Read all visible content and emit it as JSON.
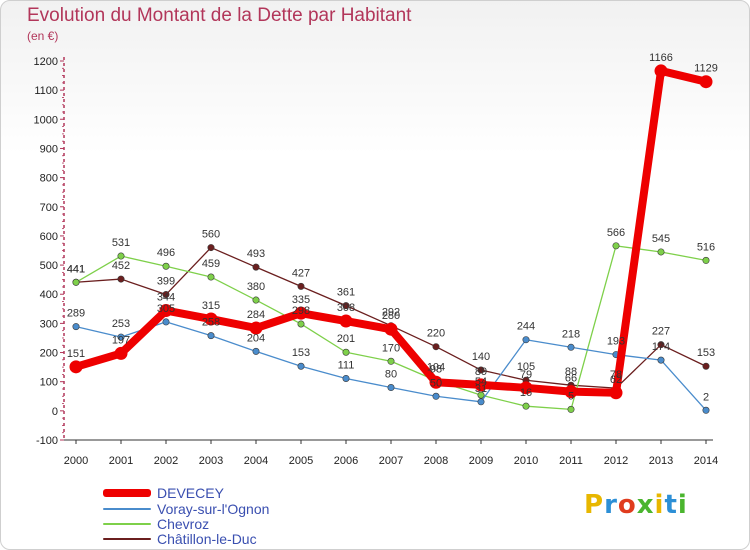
{
  "title": "Evolution du Montant de la Dette par Habitant",
  "unit_label": "(en €)",
  "logo_text": "Proxiti",
  "logo_colors": [
    "#e8b700",
    "#2c8fd6",
    "#e03c1e",
    "#4ab52e",
    "#e8b700",
    "#2c8fd6",
    "#4ab52e"
  ],
  "chart_data": {
    "type": "line",
    "x": [
      "2000",
      "2001",
      "2002",
      "2003",
      "2004",
      "2005",
      "2006",
      "2007",
      "2008",
      "2009",
      "2010",
      "2011",
      "2012",
      "2013",
      "2014"
    ],
    "ylim": [
      -100,
      1200
    ],
    "yticks": [
      -100,
      0,
      100,
      200,
      300,
      400,
      500,
      600,
      700,
      800,
      900,
      1000,
      1100,
      1200
    ],
    "grid": false,
    "legend_position": "bottom-left",
    "series": [
      {
        "name": "Châtillon-le-Duc",
        "color": "#6b1f1f",
        "values": [
          441,
          452,
          399,
          560,
          493,
          427,
          361,
          292,
          220,
          140,
          105,
          88,
          78,
          227,
          153
        ]
      },
      {
        "name": "Chevroz",
        "color": "#7ed04a",
        "values": [
          441,
          531,
          496,
          459,
          380,
          298,
          201,
          170,
          104,
          54,
          16,
          5,
          566,
          545,
          516
        ]
      },
      {
        "name": "Voray-sur-l'Ognon",
        "color": "#4a8ccc",
        "values": [
          289,
          253,
          305,
          258,
          204,
          153,
          111,
          80,
          50,
          31,
          244,
          218,
          193,
          174,
          2
        ]
      },
      {
        "name": "DEVECEY",
        "color": "#ee0000",
        "values": [
          151,
          197,
          344,
          315,
          284,
          335,
          308,
          280,
          98,
          89,
          79,
          66,
          62,
          1166,
          1129
        ]
      }
    ],
    "data_labels": {
      "Châtillon-le-Duc": [
        "441",
        "452",
        "399",
        "560",
        "493",
        "427",
        "361",
        "292",
        "220",
        "140",
        "105",
        "88",
        "78",
        "227",
        "153"
      ],
      "Chevroz": [
        "441",
        "531",
        "496",
        "459",
        "380",
        "298",
        "201",
        "170",
        "104",
        "54",
        "16",
        "5",
        "566",
        "545",
        "516"
      ],
      "Voray-sur-l'Ognon": [
        "289",
        "253",
        "305",
        "258",
        "204",
        "153",
        "111",
        "80",
        "50",
        "31",
        "244",
        "218",
        "193",
        "174",
        "2"
      ],
      "DEVECEY": [
        "151",
        "197",
        "344",
        "315",
        "284",
        "335",
        "308",
        "280",
        "98",
        "89",
        "79",
        "66",
        "62",
        "1166",
        "1129"
      ]
    }
  },
  "legend": [
    {
      "label": "DEVECEY",
      "color": "#ee0000",
      "thick": true
    },
    {
      "label": "Voray-sur-l'Ognon",
      "color": "#4a8ccc",
      "thick": false
    },
    {
      "label": "Chevroz",
      "color": "#7ed04a",
      "thick": false
    },
    {
      "label": "Châtillon-le-Duc",
      "color": "#6b1f1f",
      "thick": false
    }
  ]
}
